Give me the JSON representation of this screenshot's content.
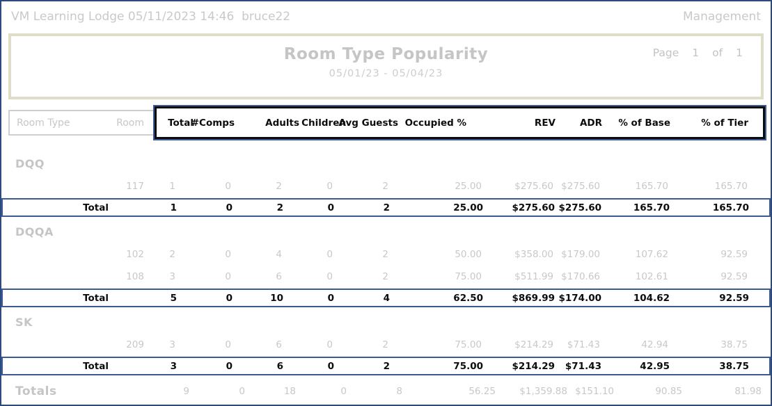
{
  "topbar": {
    "left": "VM Learning Lodge 05/11/2023 14:46  bruce22",
    "right": "Management"
  },
  "report": {
    "title": "Room Type Popularity",
    "date_range": "05/01/23 - 05/04/23",
    "page_label": "Page",
    "page_number": "1",
    "of_label": "of",
    "page_total": "1"
  },
  "table": {
    "left_headers": [
      "Room Type",
      "Room"
    ],
    "boxed_headers": [
      "Total",
      "#Comps",
      "Adults",
      "Children",
      "Avg Guests",
      "Occupied %",
      "REV",
      "ADR",
      "% of Base",
      "% of Tier"
    ],
    "groups": [
      {
        "name": "DQQ",
        "rooms": [
          {
            "room": "117",
            "values": [
              "1",
              "0",
              "2",
              "0",
              "2",
              "25.00",
              "$275.60",
              "$275.60",
              "165.70",
              "165.70"
            ]
          }
        ],
        "total": {
          "label": "Total",
          "values": [
            "1",
            "0",
            "2",
            "0",
            "2",
            "25.00",
            "$275.60",
            "$275.60",
            "165.70",
            "165.70"
          ]
        }
      },
      {
        "name": "DQQA",
        "rooms": [
          {
            "room": "102",
            "values": [
              "2",
              "0",
              "4",
              "0",
              "2",
              "50.00",
              "$358.00",
              "$179.00",
              "107.62",
              "92.59"
            ]
          },
          {
            "room": "108",
            "values": [
              "3",
              "0",
              "6",
              "0",
              "2",
              "75.00",
              "$511.99",
              "$170.66",
              "102.61",
              "92.59"
            ]
          }
        ],
        "total": {
          "label": "Total",
          "values": [
            "5",
            "0",
            "10",
            "0",
            "4",
            "62.50",
            "$869.99",
            "$174.00",
            "104.62",
            "92.59"
          ]
        }
      },
      {
        "name": "SK",
        "rooms": [
          {
            "room": "209",
            "values": [
              "3",
              "0",
              "6",
              "0",
              "2",
              "75.00",
              "$214.29",
              "$71.43",
              "42.94",
              "38.75"
            ]
          }
        ],
        "total": {
          "label": "Total",
          "values": [
            "3",
            "0",
            "6",
            "0",
            "2",
            "75.00",
            "$214.29",
            "$71.43",
            "42.95",
            "38.75"
          ]
        }
      }
    ],
    "grand_total": {
      "label": "Totals",
      "values": [
        "9",
        "0",
        "18",
        "0",
        "8",
        "56.25",
        "$1,359.88",
        "$151.10",
        "90.85",
        "81.98"
      ]
    }
  },
  "colors": {
    "page_border_navy": "#2c4a7c",
    "total_row_navy": "#3a5a96",
    "header_box_black": "#0b0b0b",
    "title_box_khaki": "#deddc7",
    "muted_text": "#c8c8c8"
  }
}
